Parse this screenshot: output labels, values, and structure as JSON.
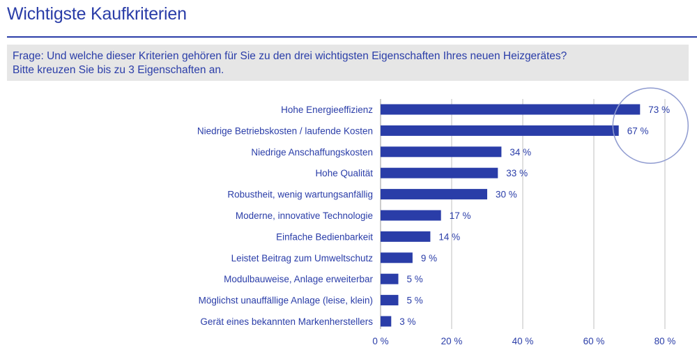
{
  "title": "Wichtigste Kaufkriterien",
  "question": {
    "line1": "Frage:  Und welche dieser Kriterien gehören für Sie zu den drei wichtigsten Eigenschaften Ihres neuen Heizgerätes?",
    "line2": "Bitte kreuzen Sie bis zu 3 Eigenschaften an."
  },
  "colors": {
    "bar": "#2a3da8",
    "text": "#2a3da8",
    "grid": "#bfbfbf",
    "highlight_circle": "#8f9bd0"
  },
  "chart_data": {
    "type": "bar",
    "orientation": "horizontal",
    "categories": [
      "Hohe Energieeffizienz",
      "Niedrige Betriebskosten / laufende Kosten",
      "Niedrige Anschaffungskosten",
      "Hohe Qualität",
      "Robustheit, wenig wartungsanfällig",
      "Moderne, innovative Technologie",
      "Einfache Bedienbarkeit",
      "Leistet Beitrag zum Umweltschutz",
      "Modulbauweise, Anlage erweiterbar",
      "Möglichst unauffällige Anlage (leise, klein)",
      "Gerät eines bekannten Markenherstellers"
    ],
    "values": [
      73,
      67,
      34,
      33,
      30,
      17,
      14,
      9,
      5,
      5,
      3
    ],
    "value_labels": [
      "73 %",
      "67 %",
      "34 %",
      "33 %",
      "30 %",
      "17 %",
      "14 %",
      "9 %",
      "5 %",
      "5 %",
      "3 %"
    ],
    "xlim": [
      0,
      80
    ],
    "xticks": [
      0,
      20,
      40,
      60,
      80
    ],
    "xtick_labels": [
      "0 %",
      "20 %",
      "40 %",
      "60 %",
      "80 %"
    ],
    "grid": true,
    "highlighted_categories": [
      "Hohe Energieeffizienz",
      "Niedrige Betriebskosten / laufende Kosten"
    ]
  }
}
